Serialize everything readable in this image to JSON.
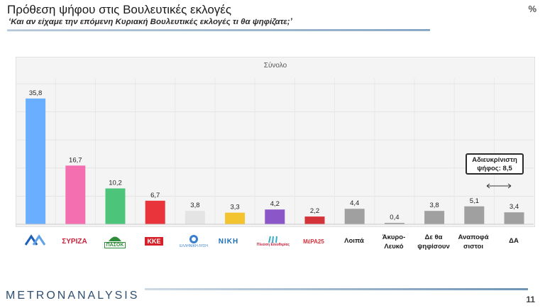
{
  "header": {
    "title": "Πρόθεση ψήφου στις Βουλευτικές εκλογές",
    "subtitle": "‘Και αν είχαμε την επόμενη Κυριακή Βουλευτικές εκλογές τι θα ψηφίζατε;’",
    "unit": "%"
  },
  "chart_data": {
    "type": "bar",
    "title": "Σύνολο",
    "categories": [
      "ΝΔ",
      "ΣΥΡΙΖΑ",
      "ΠΑΣΟΚ",
      "ΚΚΕ",
      "Ελληνική Λύση",
      "ΝΙΚΗ",
      "Πλεύση Ελευθερίας",
      "ΜέΡΑ25",
      "Λοιπά",
      "Άκυρο-Λευκό",
      "Δε θα ψηφίσουν",
      "Αναποφάσιστοι",
      "ΔΑ"
    ],
    "values": [
      35.8,
      16.7,
      10.2,
      6.7,
      3.8,
      3.3,
      4.2,
      2.2,
      4.4,
      0.4,
      3.8,
      5.1,
      3.4
    ],
    "value_labels": [
      "35,8",
      "16,7",
      "10,2",
      "6,7",
      "3,8",
      "3,3",
      "4,2",
      "2,2",
      "4,4",
      "0,4",
      "3,8",
      "5,1",
      "3,4"
    ],
    "colors": [
      "#6aaeff",
      "#f36fb0",
      "#4cc47a",
      "#e8343a",
      "#e4e4e4",
      "#f4c430",
      "#8a56c8",
      "#d4333a",
      "#a0a0a0",
      "#a0a0a0",
      "#a0a0a0",
      "#a0a0a0",
      "#a0a0a0"
    ],
    "ylim": [
      0,
      40
    ],
    "grid": true,
    "legend": "none"
  },
  "categories_text": {
    "loipa": "Λοιπά",
    "akyro": "Άκυρο-Λευκό",
    "akyro_line1": "Άκυρο-",
    "akyro_line2": "Λευκό",
    "de_tha_line1": "Δε θα",
    "de_tha_line2": "ψηφίσουν",
    "anapof_line1": "Αναποφά",
    "anapof_line2": "σιστοι",
    "da": "ΔΑ"
  },
  "logos": {
    "nd": "ΝΔ",
    "syriza": "ΣΥΡΙΖΑ",
    "pasok": "ΠΑΣΟΚ",
    "kke": "ΚΚΕ",
    "elliniki_lysi": "ΕΛΛΗΝΙΚΗ ΛΥΣΗ",
    "niki": "ΝΙΚΗ",
    "plefsi": "Πλεύση Ελευθερίας",
    "mera25": "ΜέΡΑ25"
  },
  "annotation": {
    "line1": "Αδιευκρίνιστη",
    "line2": "ψήφος: 8,5"
  },
  "footer": {
    "brand_left": "METRON",
    "brand_right": "ANALYSIS",
    "page": "11"
  }
}
